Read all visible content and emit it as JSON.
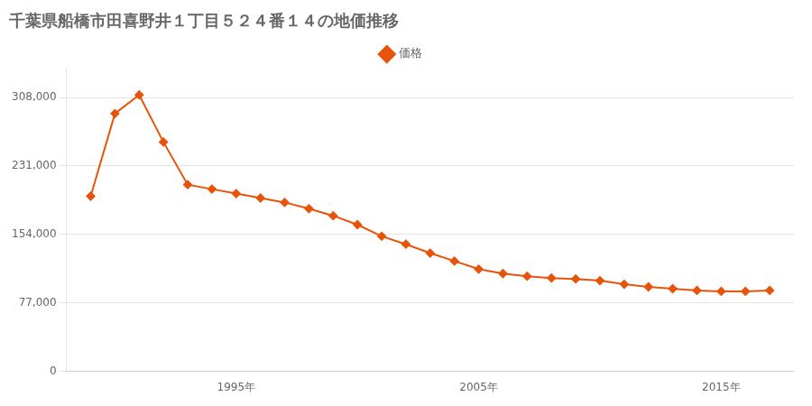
{
  "chart_data": {
    "type": "line",
    "title": "千葉県船橋市田喜野井１丁目５２４番１４の地価推移",
    "x": [
      1989,
      1990,
      1991,
      1992,
      1993,
      1994,
      1995,
      1996,
      1997,
      1998,
      1999,
      2000,
      2001,
      2002,
      2003,
      2004,
      2005,
      2006,
      2007,
      2008,
      2009,
      2010,
      2011,
      2012,
      2013,
      2014,
      2015,
      2016,
      2017
    ],
    "series": [
      {
        "name": "価格",
        "color": "#e8530a",
        "values": [
          197000,
          290000,
          311000,
          258000,
          210000,
          205000,
          200000,
          195000,
          190000,
          183000,
          175000,
          165000,
          152000,
          143000,
          133000,
          124000,
          115000,
          110000,
          107000,
          105000,
          104000,
          102000,
          98000,
          95000,
          93000,
          91000,
          90000,
          90000,
          91000
        ]
      }
    ],
    "xlim": [
      1988,
      2018
    ],
    "xticks": [
      {
        "value": 1995,
        "label": "1995年"
      },
      {
        "value": 2005,
        "label": "2005年"
      },
      {
        "value": 2015,
        "label": "2015年"
      }
    ],
    "ylim": [
      0,
      340000
    ],
    "yticks": [
      0,
      {
        "value": 77000,
        "label": "77,000"
      },
      {
        "value": 154000,
        "label": "154,000"
      },
      {
        "value": 231000,
        "label": "231,000"
      },
      {
        "value": 308000,
        "label": "308,000"
      }
    ],
    "grid": "y",
    "legend": "top",
    "marker": "diamond"
  }
}
